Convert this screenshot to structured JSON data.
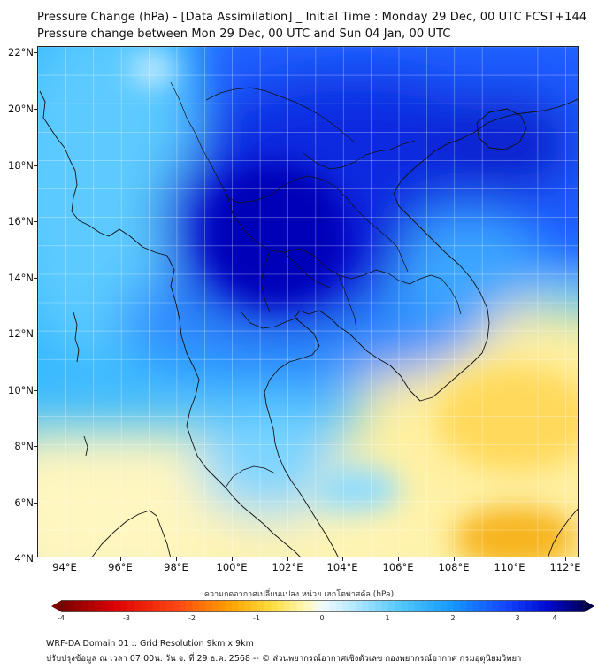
{
  "header": {
    "title_line1": "Pressure Change (hPa) - [Data Assimilation] _ Initial Time : Monday 29 Dec, 00 UTC FCST+144",
    "title_line2": "Pressure change between Mon 29 Dec, 00 UTC and Sun 04 Jan, 00 UTC"
  },
  "map": {
    "lat_labels": [
      "22°N",
      "20°N",
      "18°N",
      "16°N",
      "14°N",
      "12°N",
      "10°N",
      "8°N",
      "6°N",
      "4°N"
    ],
    "lon_labels": [
      "94°E",
      "96°E",
      "98°E",
      "100°E",
      "102°E",
      "104°E",
      "106°E",
      "108°E",
      "110°E",
      "112°E"
    ],
    "lat_range": [
      4,
      22
    ],
    "lon_range": [
      93,
      112.5
    ],
    "grid": true,
    "colors": {
      "strong_fall": "#0000c8",
      "moderate_fall": "#1a6cff",
      "light_fall": "#35b8ff",
      "neutral": "#e8f6ff",
      "light_rise": "#fff7b8",
      "moderate_rise": "#ffe27a",
      "strong_rise": "#f7b41a"
    }
  },
  "colorbar": {
    "title": "ความกดอากาศเปลี่ยนแปลง หน่วย เฮกโตพาสคัล (hPa)",
    "ticks": [
      "-4",
      "-3",
      "-2",
      "-1",
      "0",
      "1",
      "2",
      "3",
      "4"
    ]
  },
  "footer": {
    "line1": "WRF-DA Domain 01 :: Grid Resolution 9km x 9km",
    "line2": "ปรับปรุงข้อมูล ณ เวลา 07:00น. วัน จ. ที่ 29 ธ.ค. 2568 -- © ส่วนพยากรณ์อากาศเชิงตัวเลข กองพยากรณ์อากาศ กรมอุตุนิยมวิทยา"
  }
}
